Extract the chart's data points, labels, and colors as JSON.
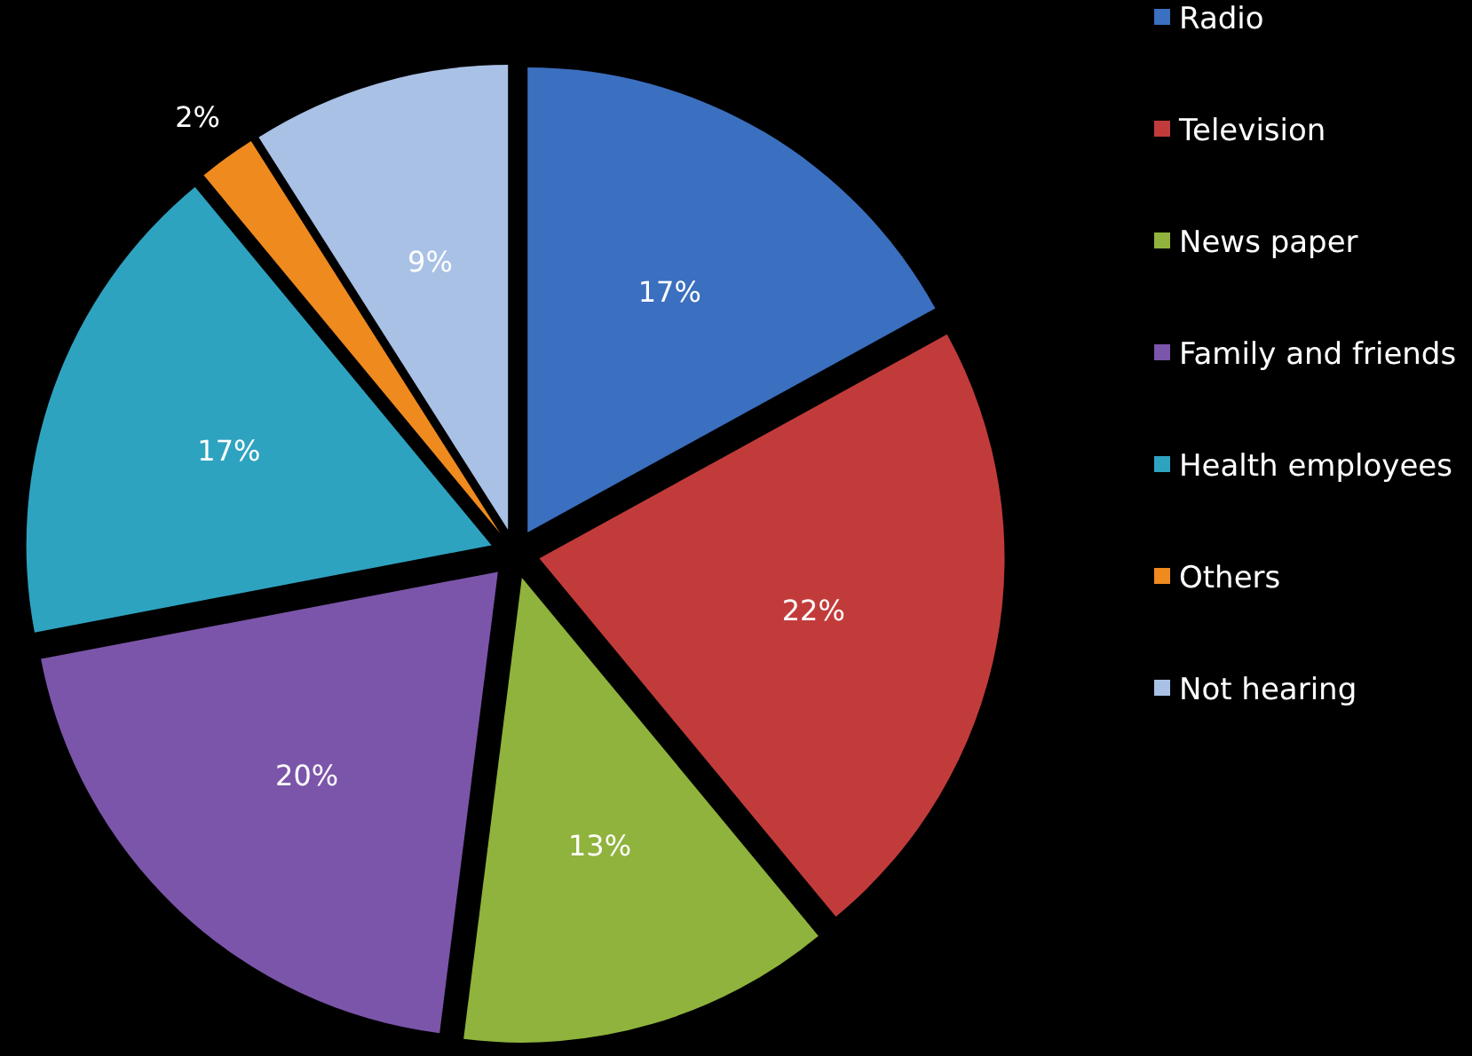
{
  "chart_data": {
    "type": "pie",
    "categories": [
      "Radio",
      "Television",
      "News paper",
      "Family and friends",
      "Health employees",
      "Others",
      "Not hearing"
    ],
    "values": [
      17,
      22,
      13,
      20,
      17,
      2,
      9
    ],
    "colors": [
      "#3b6fbf",
      "#c23b3b",
      "#8fb33c",
      "#7b55a9",
      "#2ea3c0",
      "#ef8a1f",
      "#a9c1e5"
    ],
    "value_labels": [
      "17%",
      "22%",
      "13%",
      "20%",
      "17%",
      "2%",
      "9%"
    ],
    "legend": "right"
  }
}
